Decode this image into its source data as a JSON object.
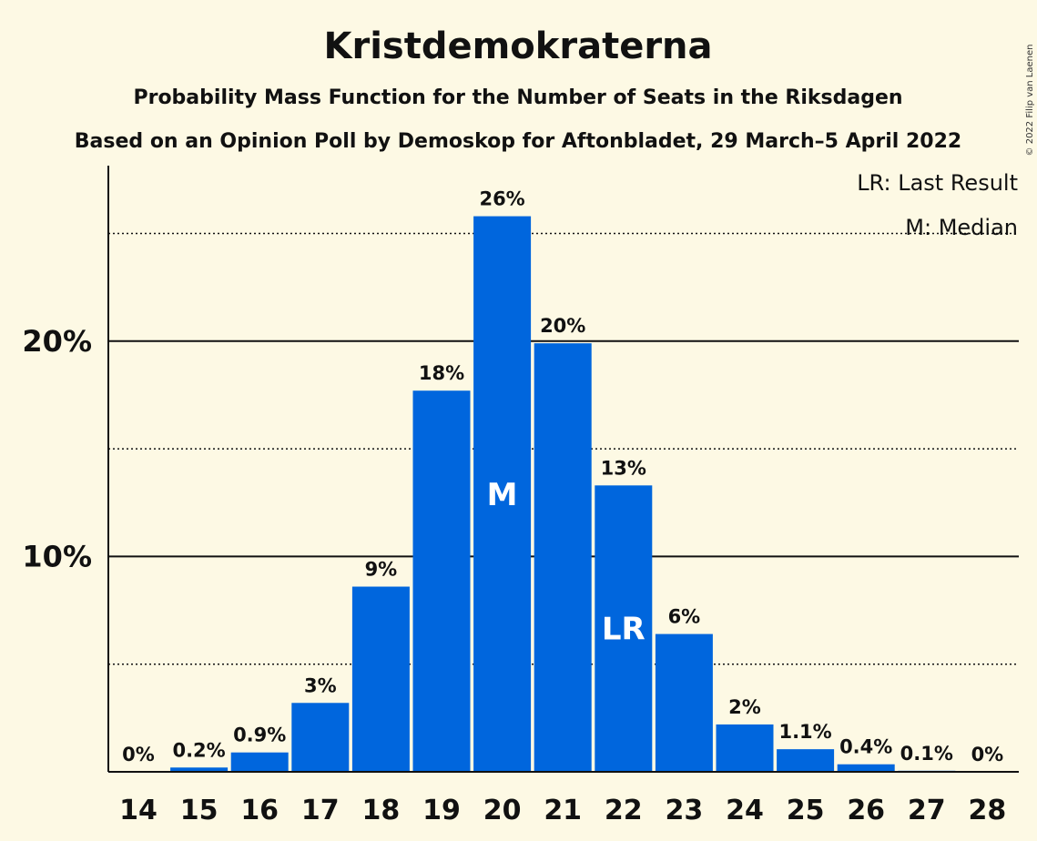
{
  "chart_data": {
    "type": "bar",
    "title": "Kristdemokraterna",
    "subtitle": "Probability Mass Function for the Number of Seats in the Riksdagen",
    "subtitle2": "Based on an Opinion Poll by Demoskop for Aftonbladet, 29 March–5 April 2022",
    "copyright": "© 2022 Filip van Laenen",
    "legend": [
      "LR: Last Result",
      "M: Median"
    ],
    "legend_position": "top-right",
    "categories": [
      "14",
      "15",
      "16",
      "17",
      "18",
      "19",
      "20",
      "21",
      "22",
      "23",
      "24",
      "25",
      "26",
      "27",
      "28"
    ],
    "values": [
      0,
      0.2,
      0.9,
      3.2,
      8.6,
      17.7,
      25.8,
      19.9,
      13.3,
      6.4,
      2.2,
      1.05,
      0.35,
      0.05,
      0
    ],
    "data_labels": [
      "0%",
      "0.2%",
      "0.9%",
      "3%",
      "9%",
      "18%",
      "26%",
      "20%",
      "13%",
      "6%",
      "2%",
      "1.1%",
      "0.4%",
      "0.1%",
      "0%"
    ],
    "markers": [
      {
        "category": "20",
        "label": "M"
      },
      {
        "category": "22",
        "label": "LR"
      }
    ],
    "ylim": [
      0,
      28
    ],
    "yticks": [
      {
        "value": 10,
        "label": "10%"
      },
      {
        "value": 20,
        "label": "20%"
      }
    ],
    "minor_gridlines": [
      5,
      15,
      25
    ],
    "grid": true,
    "colors": {
      "bar": "#0066dd",
      "background": "#fdf9e4"
    }
  }
}
